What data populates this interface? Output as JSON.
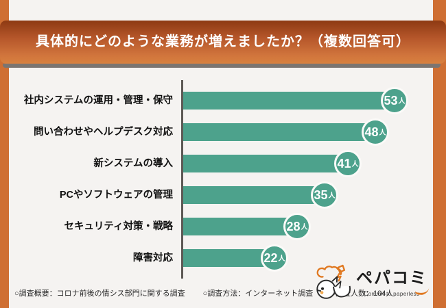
{
  "colors": {
    "background": "#f5f3f1",
    "accent_orange": "#cf6f33",
    "banner_gradient_top": "#8d3a13",
    "banner_gradient_bottom": "#d8813f",
    "bar_green": "#4da28c",
    "axis_gray": "#5d5955",
    "title_text": "#ffffff",
    "label_text": "#111111"
  },
  "header": {
    "title": "具体的にどのような業務が増えましたか？（複数回答可）"
  },
  "chart_data": {
    "type": "bar",
    "orientation": "horizontal",
    "title": "具体的にどのような業務が増えましたか？（複数回答可）",
    "categories": [
      "社内システムの運用・管理・保守",
      "問い合わせやヘルプデスク対応",
      "新システムの導入",
      "PCやソフトウェアの管理",
      "セキュリティ対策・戦略",
      "障害対応"
    ],
    "values": [
      53,
      48,
      41,
      35,
      28,
      22
    ],
    "unit": "人",
    "value_max_for_scale": 53,
    "xlim": [
      0,
      57
    ],
    "grid": false,
    "legend": false,
    "value_label_style": "circle-badge",
    "bar_color": "#4da28c"
  },
  "footer": {
    "items": [
      "○調査概要：コロナ前後の情シス部門に関する調査",
      "○調査方法：インターネット調査",
      "○調査人数：104人"
    ]
  },
  "logo": {
    "brand": "ペパコミ",
    "tagline": "Commit to paperless",
    "icon": "chick-with-paper-icon"
  }
}
